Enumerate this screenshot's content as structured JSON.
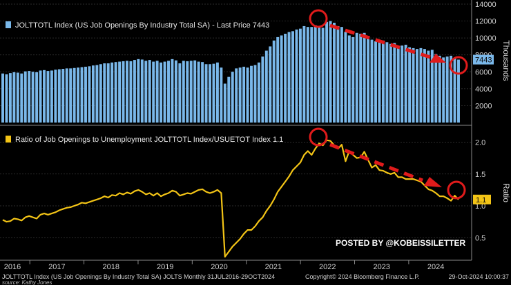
{
  "chart_data": [
    {
      "type": "bar",
      "title": "JOLTTOTL Index (US Job Openings By Industry Total SA) - Last Price 7443",
      "ylabel": "Thousands",
      "ylim": [
        0,
        14000
      ],
      "yticks": [
        2000,
        4000,
        6000,
        8000,
        10000,
        12000,
        14000
      ],
      "last_value": 7443,
      "last_value_label": "7443",
      "color": "#7ab8ea",
      "values": [
        5800,
        5700,
        5850,
        5950,
        5900,
        5800,
        6050,
        6100,
        6000,
        5950,
        6150,
        6200,
        6100,
        6150,
        6250,
        6300,
        6350,
        6400,
        6400,
        6450,
        6500,
        6550,
        6600,
        6650,
        6750,
        6800,
        6900,
        7000,
        7000,
        7100,
        7150,
        7200,
        7250,
        7300,
        7250,
        7400,
        7500,
        7450,
        7300,
        7400,
        7200,
        7300,
        7100,
        7200,
        7300,
        7500,
        7350,
        7000,
        7300,
        7250,
        7300,
        7350,
        7200,
        7150,
        6900,
        6900,
        6950,
        7100,
        6500,
        4600,
        5400,
        6000,
        6400,
        6500,
        6600,
        6500,
        6700,
        6800,
        7100,
        7800,
        8500,
        9000,
        9700,
        10100,
        10300,
        10500,
        10700,
        10800,
        11000,
        11100,
        11400,
        11300,
        11300,
        11500,
        11400,
        11200,
        11900,
        12000,
        11800,
        11400,
        11300,
        10700,
        10300,
        10100,
        10600,
        10500,
        10600,
        9900,
        9800,
        9600,
        9800,
        9700,
        9500,
        9300,
        9400,
        8900,
        9100,
        9200,
        8900,
        8800,
        8700,
        8800,
        8700,
        8500,
        8600,
        8100,
        7900,
        7700,
        7800,
        7900,
        7600,
        7443
      ]
    },
    {
      "type": "line",
      "title": "Ratio of Job Openings to Unemployment JOLTTOTL Index/USUETOT Index 1.1",
      "ylabel": "Ratio",
      "ylim": [
        0.2,
        2.2
      ],
      "yticks": [
        0.5,
        1.0,
        1.5,
        2.0
      ],
      "ytick_labels": [
        "0.5",
        "1.0",
        "1.5",
        "2.0"
      ],
      "last_value": 1.1,
      "last_value_label": "1.1",
      "color": "#f3c416",
      "values": [
        0.78,
        0.75,
        0.76,
        0.8,
        0.79,
        0.77,
        0.82,
        0.84,
        0.82,
        0.8,
        0.86,
        0.88,
        0.86,
        0.88,
        0.9,
        0.93,
        0.95,
        0.97,
        0.98,
        1.0,
        1.02,
        1.05,
        1.04,
        1.06,
        1.08,
        1.1,
        1.12,
        1.15,
        1.13,
        1.17,
        1.16,
        1.2,
        1.18,
        1.21,
        1.19,
        1.23,
        1.25,
        1.22,
        1.18,
        1.2,
        1.16,
        1.2,
        1.15,
        1.18,
        1.2,
        1.24,
        1.22,
        1.16,
        1.18,
        1.2,
        1.19,
        1.22,
        1.25,
        1.26,
        1.22,
        1.2,
        1.22,
        1.25,
        1.2,
        0.2,
        0.28,
        0.36,
        0.42,
        0.48,
        0.56,
        0.62,
        0.62,
        0.68,
        0.76,
        0.82,
        0.92,
        1.0,
        1.1,
        1.22,
        1.3,
        1.38,
        1.46,
        1.56,
        1.62,
        1.68,
        1.8,
        1.86,
        1.8,
        1.9,
        1.98,
        1.95,
        2.03,
        2.02,
        1.95,
        1.9,
        1.96,
        1.7,
        1.86,
        1.8,
        1.75,
        1.76,
        1.85,
        1.72,
        1.6,
        1.64,
        1.56,
        1.55,
        1.52,
        1.5,
        1.52,
        1.45,
        1.45,
        1.42,
        1.42,
        1.42,
        1.4,
        1.38,
        1.32,
        1.26,
        1.24,
        1.2,
        1.15,
        1.15,
        1.12,
        1.08,
        1.16,
        1.1
      ]
    }
  ],
  "x_axis": {
    "start": 2016.5,
    "end": 2024.92,
    "year_labels": [
      "2016",
      "2017",
      "2018",
      "2019",
      "2020",
      "2021",
      "2022",
      "2023",
      "2024"
    ]
  },
  "footer": {
    "left": "JOLTTOTL Index (US Job Openings By Industry Total SA) JOLTS  Monthly 31JUL2016-29OCT2024",
    "right": "Copyright© 2024 Bloomberg Finance L.P.",
    "date": "29-Oct-2024 10:00:37",
    "source": "source: Kathy Jones"
  },
  "watermark": "POSTED BY @KOBEISSILETTER",
  "colors": {
    "bar": "#7ab8ea",
    "line": "#f3c416",
    "annotation": "#e01b1b",
    "legend_bar": "#7ab8ea",
    "legend_line": "#f3c416"
  }
}
